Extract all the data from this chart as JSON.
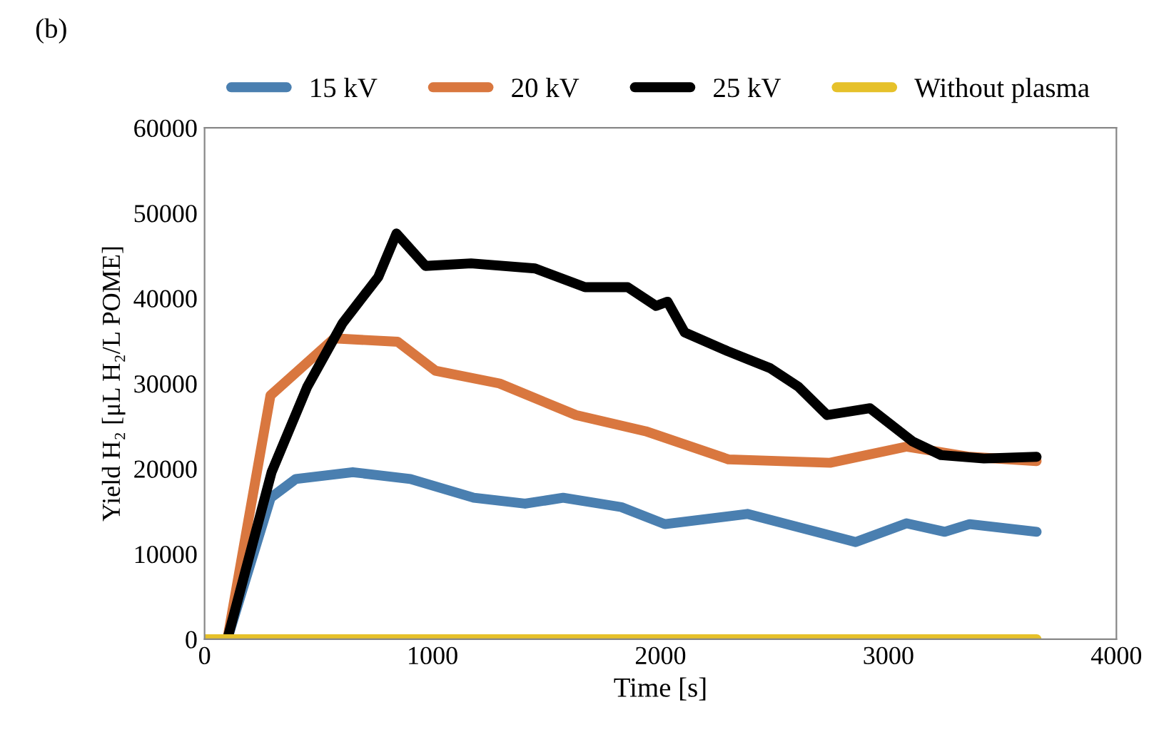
{
  "chart_data": {
    "type": "line",
    "xlabel": "Time [s]",
    "ylabel": "Yield H₂ [μL H₂/L POME]",
    "annotations": [
      "(b)"
    ],
    "xlim": [
      0,
      4000
    ],
    "xticks": [
      0,
      1000,
      2000,
      3000,
      4000
    ],
    "ylim": [
      0,
      60000
    ],
    "yticks": [
      0,
      10000,
      20000,
      30000,
      40000,
      50000,
      60000
    ],
    "grid": false,
    "legend": "top",
    "line_style": "solid",
    "series": [
      {
        "name": "15 kV",
        "color": "#4a7fb0",
        "x": [
          100,
          290,
          400,
          650,
          903,
          1181,
          1406,
          1573,
          1828,
          2019,
          2381,
          2856,
          3079,
          3247,
          3356,
          3650
        ],
        "values": [
          0,
          16600,
          18800,
          19600,
          18800,
          16600,
          15900,
          16600,
          15500,
          13500,
          14700,
          11400,
          13600,
          12600,
          13500,
          12600
        ]
      },
      {
        "name": "20 kV",
        "color": "#d9773f",
        "x": [
          100,
          289,
          569,
          847,
          1013,
          1294,
          1629,
          1935,
          2298,
          2744,
          3079,
          3356,
          3650
        ],
        "values": [
          0,
          28600,
          35300,
          34900,
          31500,
          30000,
          26300,
          24400,
          21100,
          20700,
          22600,
          21400,
          20900
        ]
      },
      {
        "name": "25 kV",
        "color": "#000000",
        "x": [
          100,
          294,
          450,
          606,
          762,
          842,
          969,
          1169,
          1450,
          1669,
          1856,
          1981,
          2031,
          2106,
          2294,
          2481,
          2606,
          2731,
          2919,
          3106,
          3231,
          3419,
          3650
        ],
        "values": [
          0,
          19600,
          29600,
          37100,
          42500,
          47600,
          43800,
          44100,
          43500,
          41300,
          41300,
          39100,
          39600,
          36000,
          33800,
          31800,
          29600,
          26300,
          27100,
          23200,
          21600,
          21200,
          21400
        ]
      },
      {
        "name": "Without plasma",
        "color": "#e6c12a",
        "x": [
          0,
          3650
        ],
        "values": [
          0,
          0
        ]
      }
    ]
  }
}
